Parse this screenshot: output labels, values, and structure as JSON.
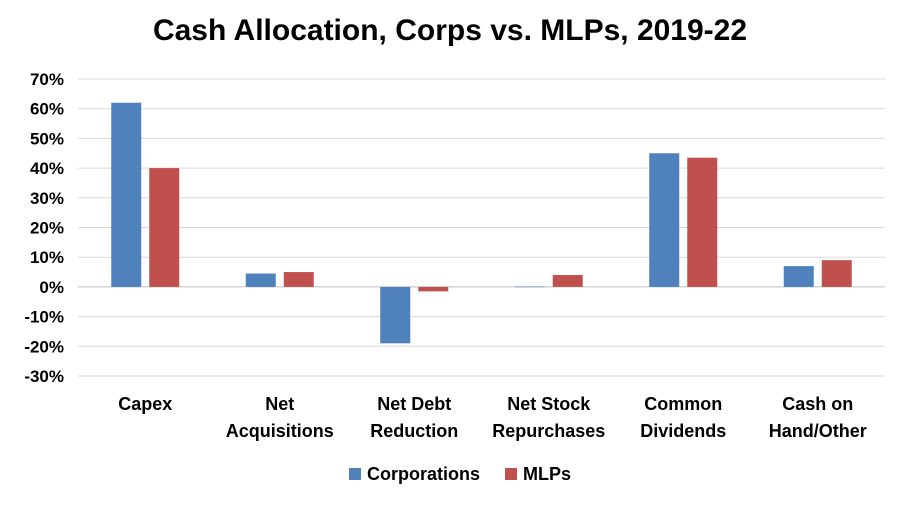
{
  "chart_data": {
    "type": "bar",
    "title": "Cash Allocation, Corps vs. MLPs, 2019-22",
    "categories": [
      [
        "Capex"
      ],
      [
        "Net",
        "Acquisitions"
      ],
      [
        "Net Debt",
        "Reduction"
      ],
      [
        "Net Stock",
        "Repurchases"
      ],
      [
        "Common",
        "Dividends"
      ],
      [
        "Cash on",
        "Hand/Other"
      ]
    ],
    "series": [
      {
        "name": "Corporations",
        "color": "#4F81BD",
        "values": [
          62,
          4.5,
          -19,
          0,
          45,
          7
        ]
      },
      {
        "name": "MLPs",
        "color": "#C0504D",
        "values": [
          40,
          5,
          -1.5,
          4,
          43.5,
          9
        ]
      }
    ],
    "ylim": [
      -30,
      70
    ],
    "yticks": [
      70,
      60,
      50,
      40,
      30,
      20,
      10,
      0,
      -10,
      -20,
      -30
    ],
    "ytick_labels": [
      "70%",
      "60%",
      "50%",
      "40%",
      "30%",
      "20%",
      "10%",
      "0%",
      "-10%",
      "-20%",
      "-30%"
    ],
    "grid": true,
    "legend": "bottom-center",
    "xlabel": "",
    "ylabel": ""
  }
}
